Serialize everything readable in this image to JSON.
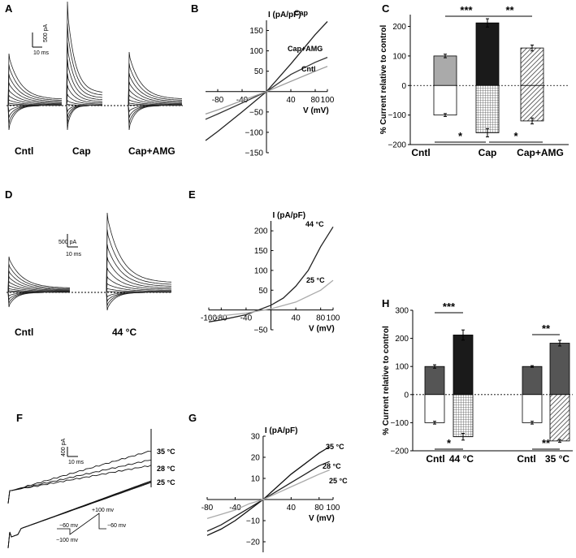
{
  "chart_data": [
    {
      "panel": "A",
      "type": "line",
      "traces_label": "Current traces",
      "scale_bar": {
        "current": "500 pA",
        "time": "10 ms"
      },
      "groups": [
        "Cntl",
        "Cap",
        "Cap+AMG"
      ]
    },
    {
      "panel": "B",
      "type": "line",
      "ylabel": "I (pA/pF)",
      "xlabel": "V (mV)",
      "xlim": [
        -100,
        100
      ],
      "ylim": [
        -150,
        175
      ],
      "xticks": [
        -80,
        -40,
        40,
        80,
        100
      ],
      "yticks": [
        -150,
        -100,
        -50,
        50,
        100,
        150
      ],
      "series": [
        {
          "name": "Cap",
          "color": "#222222",
          "x": [
            -100,
            -80,
            -40,
            0,
            40,
            80,
            100
          ],
          "y": [
            -120,
            -98,
            -50,
            0,
            68,
            140,
            172
          ]
        },
        {
          "name": "Cap+AMG",
          "color": "#333333",
          "x": [
            -100,
            -80,
            -40,
            0,
            40,
            80,
            100
          ],
          "y": [
            -68,
            -55,
            -28,
            0,
            42,
            72,
            84
          ]
        },
        {
          "name": "Cntl",
          "color": "#999999",
          "x": [
            -100,
            -80,
            -40,
            0,
            40,
            80,
            100
          ],
          "y": [
            -55,
            -45,
            -22,
            0,
            25,
            50,
            62
          ]
        }
      ]
    },
    {
      "panel": "C",
      "type": "bar",
      "ylabel": "% Current  relative to control",
      "ylim": [
        -200,
        240
      ],
      "yticks": [
        -200,
        -100,
        0,
        100,
        200
      ],
      "categories": [
        "Cntl",
        "Cap",
        "Cap+AMG"
      ],
      "series": [
        {
          "name": "outward",
          "values": [
            100,
            212,
            127
          ],
          "errors": [
            6,
            14,
            10
          ],
          "fills": [
            "#aaaaaa",
            "#1a1a1a",
            "#555555"
          ]
        },
        {
          "name": "inward",
          "values": [
            -100,
            -160,
            -120
          ],
          "errors": [
            5,
            14,
            10
          ],
          "fills": [
            "#ffffff",
            "#bbbbbb",
            "#dddddd"
          ]
        }
      ],
      "significance_top": [
        "***",
        "**"
      ],
      "significance_bottom": [
        "*",
        "*"
      ]
    },
    {
      "panel": "D",
      "type": "line",
      "traces_label": "Current traces",
      "scale_bar": {
        "current": "500 pA",
        "time": "10 ms"
      },
      "groups": [
        "Cntl",
        "44 °C"
      ]
    },
    {
      "panel": "E",
      "type": "line",
      "ylabel": "I (pA/pF)",
      "xlabel": "V (mV)",
      "xlim": [
        -100,
        100
      ],
      "ylim": [
        -50,
        225
      ],
      "xticks": [
        -100,
        -80,
        -40,
        40,
        80,
        100
      ],
      "yticks": [
        -50,
        50,
        100,
        150,
        200
      ],
      "series": [
        {
          "name": "44 °C",
          "color": "#222222",
          "x": [
            -100,
            -80,
            -40,
            0,
            20,
            40,
            60,
            80,
            100
          ],
          "y": [
            -30,
            -25,
            -12,
            12,
            30,
            60,
            100,
            160,
            210
          ]
        },
        {
          "name": "25 °C",
          "color": "#aaaaaa",
          "x": [
            -100,
            -80,
            -40,
            0,
            40,
            80,
            100
          ],
          "y": [
            -18,
            -15,
            -8,
            3,
            20,
            50,
            75
          ]
        }
      ]
    },
    {
      "panel": "F",
      "type": "line",
      "traces_label": "Ramp current traces",
      "scale_bar": {
        "current": "400 pA",
        "time": "10 ms"
      },
      "temperatures": [
        "35 °C",
        "28 °C",
        "25 °C"
      ],
      "protocol": {
        "start": "−60 mv",
        "min": "−100 mv",
        "max": "+100 mv",
        "end": "−60 mv"
      }
    },
    {
      "panel": "G",
      "type": "line",
      "ylabel": "I (pA/pF)",
      "xlabel": "V (mV)",
      "xlim": [
        -80,
        100
      ],
      "ylim": [
        -25,
        30
      ],
      "xticks": [
        -80,
        -40,
        40,
        80,
        100
      ],
      "yticks": [
        -20,
        -10,
        10,
        20,
        30
      ],
      "series": [
        {
          "name": "35 °C",
          "color": "#111111",
          "x": [
            -80,
            -60,
            -40,
            -20,
            0,
            20,
            40,
            60,
            80,
            95
          ],
          "y": [
            -17,
            -14,
            -10,
            -5,
            0,
            6,
            12,
            17,
            22,
            25
          ]
        },
        {
          "name": "28 °C",
          "color": "#222222",
          "x": [
            -80,
            -60,
            -40,
            -20,
            0,
            20,
            40,
            60,
            80,
            95
          ],
          "y": [
            -15,
            -12,
            -8,
            -4,
            0,
            4,
            8,
            12,
            16,
            18
          ]
        },
        {
          "name": "25 °C",
          "color": "#aaaaaa",
          "x": [
            -80,
            -60,
            -40,
            -20,
            0,
            20,
            40,
            60,
            80,
            95
          ],
          "y": [
            -9,
            -7,
            -5,
            -2,
            0,
            3,
            6,
            9,
            12,
            14
          ]
        }
      ]
    },
    {
      "panel": "H",
      "type": "bar",
      "ylabel": "% Current  relative to control",
      "ylim": [
        -200,
        300
      ],
      "yticks": [
        -200,
        -100,
        0,
        100,
        200,
        300
      ],
      "categories": [
        "Cntl",
        "44 °C",
        "Cntl",
        "35 °C"
      ],
      "series": [
        {
          "name": "outward",
          "values": [
            100,
            212,
            100,
            183
          ],
          "errors": [
            6,
            18,
            3,
            10
          ],
          "fills": [
            "#555555",
            "#1a1a1a",
            "#555555",
            "#555555"
          ]
        },
        {
          "name": "inward",
          "values": [
            -100,
            -150,
            -100,
            -165
          ],
          "errors": [
            5,
            12,
            5,
            5
          ],
          "fills": [
            "#ffffff",
            "#bbbbbb",
            "#ffffff",
            "#dddddd"
          ]
        }
      ],
      "significance_top": [
        "***",
        "**"
      ],
      "significance_bottom": [
        "*",
        "**"
      ]
    }
  ],
  "panel_letters": [
    "A",
    "B",
    "C",
    "D",
    "E",
    "F",
    "G",
    "H"
  ]
}
